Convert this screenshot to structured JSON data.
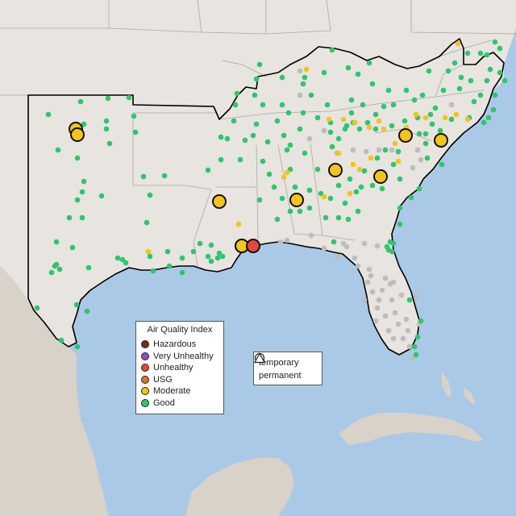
{
  "map": {
    "colors": {
      "water": "#aac9e6",
      "land": "#e8e4df",
      "land_far": "#d9d2c8",
      "state_line": "#a9a9a9",
      "region_outline": "#000000",
      "sensor_gray": "#bdbdbd"
    }
  },
  "legend": {
    "title": "Air Quality Index",
    "items": [
      {
        "label": "Hazardous",
        "color": "#7b2a20"
      },
      {
        "label": "Very Unhealthy",
        "color": "#8c4fc6"
      },
      {
        "label": "Unhealthy",
        "color": "#e6473a"
      },
      {
        "label": "USG",
        "color": "#e0731c"
      },
      {
        "label": "Moderate",
        "color": "#f3c41a"
      },
      {
        "label": "Good",
        "color": "#2dc66f"
      }
    ]
  },
  "type_legend": {
    "items": [
      {
        "label": "temporary",
        "icon": "circle-outline-icon"
      },
      {
        "label": "permanent",
        "icon": "triangle-outline-icon"
      }
    ]
  },
  "monitors": {
    "large": [
      "Moderate",
      "Moderate",
      "Moderate",
      "Moderate",
      "Moderate",
      "Moderate",
      "Moderate",
      "Moderate",
      "Moderate",
      "Moderate",
      "Unhealthy"
    ],
    "small_moderate_count": 27,
    "small_good_count": 200,
    "small_gray_count": 50
  }
}
